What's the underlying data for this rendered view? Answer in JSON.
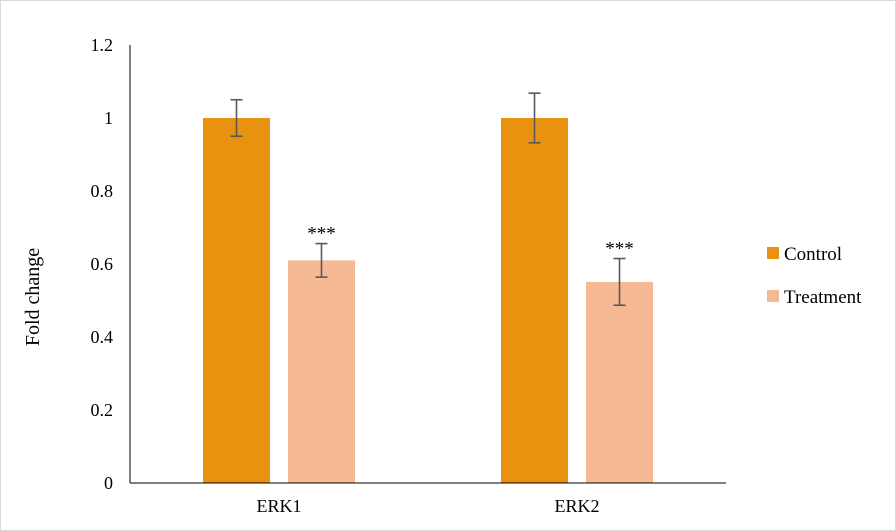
{
  "chart_data": {
    "type": "bar",
    "title": "",
    "xlabel": "",
    "ylabel": "Fold change",
    "ylim": [
      0,
      1.2
    ],
    "yticks": [
      "0",
      "0.2",
      "0.4",
      "0.6",
      "0.8",
      "1",
      "1.2"
    ],
    "categories": [
      "ERK1",
      "ERK2"
    ],
    "series": [
      {
        "name": "Control",
        "values": [
          1.0,
          1.0
        ],
        "errors": [
          0.05,
          0.068
        ],
        "annotations": [
          "",
          ""
        ]
      },
      {
        "name": "Treatment",
        "values": [
          0.61,
          0.551
        ],
        "errors": [
          0.046,
          0.064
        ],
        "annotations": [
          "***",
          "***"
        ]
      }
    ],
    "legend_position": "right",
    "grid": false,
    "colors": {
      "Control": "#e8920f",
      "Treatment": "#f5b993",
      "error_bar": "#595959",
      "axis": "#000000"
    }
  }
}
